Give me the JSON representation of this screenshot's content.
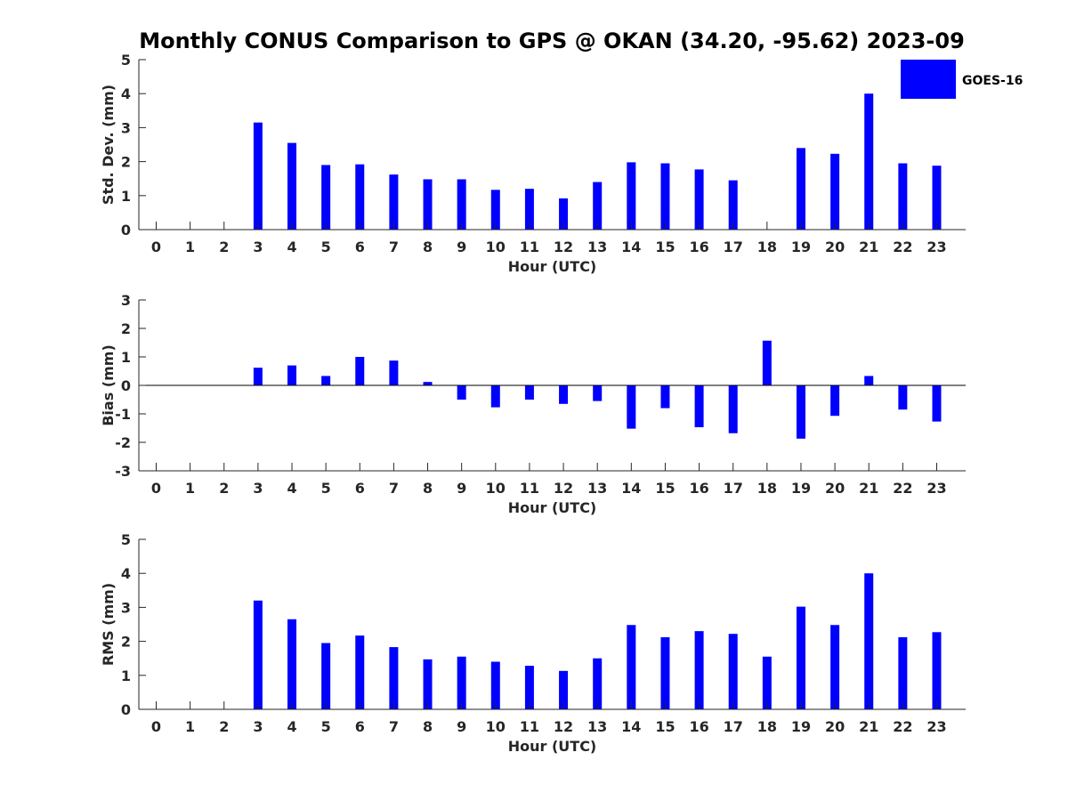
{
  "figure": {
    "title": "Monthly CONUS Comparison to GPS @ OKAN (34.20, -95.62) 2023-09",
    "legend": {
      "label": "GOES-16",
      "color": "#0000ff",
      "position": "top-right"
    },
    "bar_color": "#0000ff"
  },
  "chart_data": [
    {
      "type": "bar",
      "title": "Monthly CONUS Comparison to GPS @ OKAN (34.20, -95.62) 2023-09",
      "xlabel": "Hour (UTC)",
      "ylabel": "Std. Dev. (mm)",
      "ylim": [
        0,
        5
      ],
      "yticks": [
        0,
        1,
        2,
        3,
        4,
        5
      ],
      "categories": [
        "0",
        "1",
        "2",
        "3",
        "4",
        "5",
        "6",
        "7",
        "8",
        "9",
        "10",
        "11",
        "12",
        "13",
        "14",
        "15",
        "16",
        "17",
        "18",
        "19",
        "20",
        "21",
        "22",
        "23"
      ],
      "series": [
        {
          "name": "GOES-16",
          "values": [
            null,
            null,
            null,
            3.15,
            2.55,
            1.9,
            1.92,
            1.62,
            1.48,
            1.48,
            1.17,
            1.2,
            0.92,
            1.4,
            1.98,
            1.95,
            1.77,
            1.45,
            null,
            2.4,
            2.23,
            4.0,
            1.95,
            1.88
          ]
        }
      ]
    },
    {
      "type": "bar",
      "xlabel": "Hour (UTC)",
      "ylabel": "Bias (mm)",
      "ylim": [
        -3,
        3
      ],
      "yticks": [
        -3,
        -2,
        -1,
        0,
        1,
        2,
        3
      ],
      "categories": [
        "0",
        "1",
        "2",
        "3",
        "4",
        "5",
        "6",
        "7",
        "8",
        "9",
        "10",
        "11",
        "12",
        "13",
        "14",
        "15",
        "16",
        "17",
        "18",
        "19",
        "20",
        "21",
        "22",
        "23"
      ],
      "series": [
        {
          "name": "GOES-16",
          "values": [
            null,
            null,
            null,
            0.62,
            0.7,
            0.33,
            1.0,
            0.87,
            0.12,
            -0.5,
            -0.77,
            -0.5,
            -0.65,
            -0.55,
            -1.52,
            -0.8,
            -1.47,
            -1.68,
            1.57,
            -1.87,
            -1.07,
            0.33,
            -0.85,
            -1.27
          ]
        }
      ]
    },
    {
      "type": "bar",
      "xlabel": "Hour (UTC)",
      "ylabel": "RMS (mm)",
      "ylim": [
        0,
        5
      ],
      "yticks": [
        0,
        1,
        2,
        3,
        4,
        5
      ],
      "categories": [
        "0",
        "1",
        "2",
        "3",
        "4",
        "5",
        "6",
        "7",
        "8",
        "9",
        "10",
        "11",
        "12",
        "13",
        "14",
        "15",
        "16",
        "17",
        "18",
        "19",
        "20",
        "21",
        "22",
        "23"
      ],
      "series": [
        {
          "name": "GOES-16",
          "values": [
            null,
            null,
            null,
            3.2,
            2.65,
            1.95,
            2.17,
            1.83,
            1.47,
            1.55,
            1.4,
            1.28,
            1.13,
            1.5,
            2.48,
            2.12,
            2.3,
            2.22,
            1.55,
            3.02,
            2.48,
            4.0,
            2.12,
            2.27
          ]
        }
      ]
    }
  ]
}
